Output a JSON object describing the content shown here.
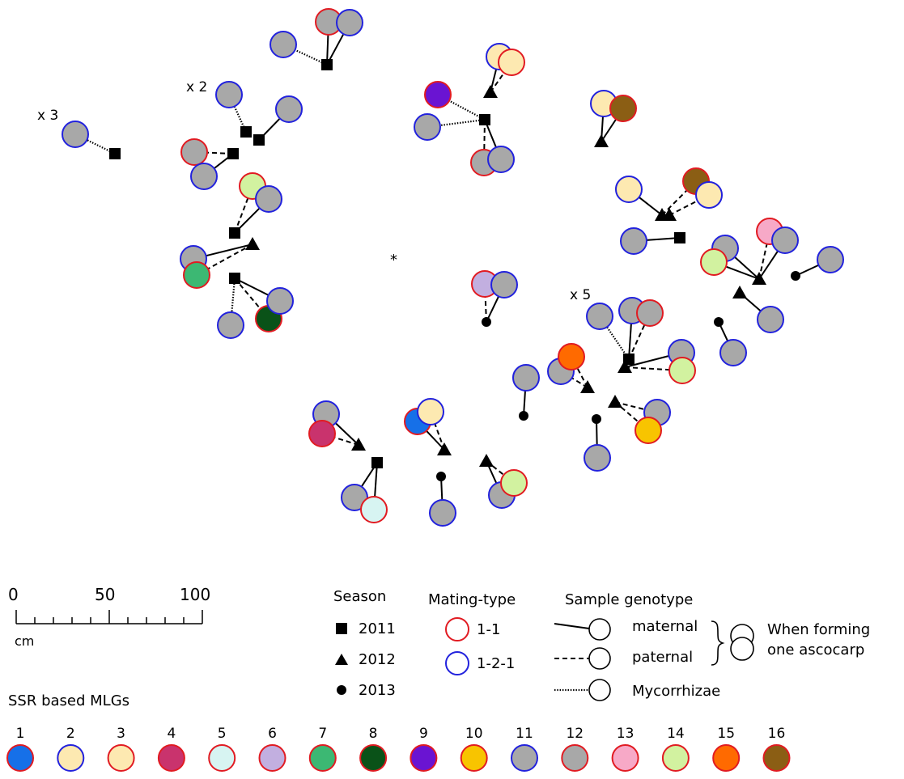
{
  "colors": {
    "red_border": "#e11b22",
    "blue_border": "#2222dd",
    "mlg_fills": [
      "#1670e8",
      "#fde9b1",
      "#fde9b1",
      "#c9336d",
      "#d7f4f2",
      "#c2afe0",
      "#3cb873",
      "#0a5218",
      "#6a14d2",
      "#f8c400",
      "#a8a8a8",
      "#a8a8a8",
      "#f7a9c7",
      "#d2f2a0",
      "#ff6a00",
      "#8b5e14"
    ],
    "mlg_borders": [
      "red",
      "blue",
      "red",
      "red",
      "red",
      "red",
      "red",
      "red",
      "red",
      "red",
      "blue",
      "red",
      "red",
      "red",
      "red",
      "red"
    ]
  },
  "annotations": {
    "x3": "x 3",
    "x2": "x 2",
    "x5": "x 5",
    "center_mark": "*"
  },
  "scale": {
    "tick_0": "0",
    "tick_50": "50",
    "tick_100": "100",
    "unit": "cm"
  },
  "legend": {
    "season_title": "Season",
    "season_items": [
      "2011",
      "2012",
      "2013"
    ],
    "mating_title": "Mating-type",
    "mating_items": [
      "1-1",
      "1-2-1"
    ],
    "genotype_title": "Sample genotype",
    "genotype_items": [
      "maternal",
      "paternal",
      "Mycorrhizae"
    ],
    "ascocarp_line1": "When forming",
    "ascocarp_line2": "one ascocarp",
    "mlg_title": "SSR based MLGs",
    "mlg_numbers": [
      "1",
      "2",
      "3",
      "4",
      "5",
      "6",
      "7",
      "8",
      "9",
      "10",
      "11",
      "12",
      "13",
      "14",
      "15",
      "16"
    ]
  }
}
